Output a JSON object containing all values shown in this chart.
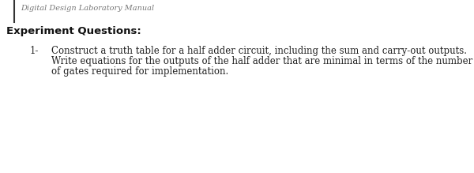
{
  "bg_color": "#ffffff",
  "header_text": "Digital Design Laboratory Manual",
  "title_text": "Experiment Questions:",
  "item_number": "1-",
  "line1": "Construct a truth table for a half adder circuit, including the sum and carry-out outputs.",
  "line2": "Write equations for the outputs of the half adder that are minimal in terms of the number",
  "line3": "of gates required for implementation.",
  "left_border_color": "#333333",
  "header_color": "#777777",
  "title_fontsize": 9.5,
  "body_fontsize": 8.5,
  "header_fontsize": 7.0
}
